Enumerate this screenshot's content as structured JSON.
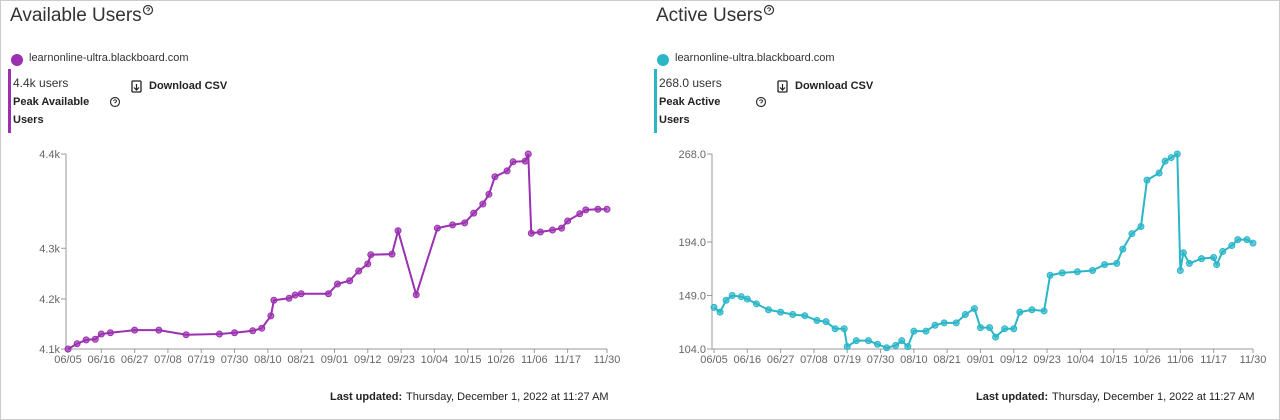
{
  "chart_data": [
    {
      "type": "line",
      "title": "Available Users",
      "peak_value": "4.4k users",
      "peak_label": "Peak Available Users",
      "download": "Download CSV",
      "updated_label": "Last updated:",
      "updated": "Thursday, December 1, 2022 at 11:27 AM",
      "x": [
        "06/05",
        "06/08",
        "06/11",
        "06/14",
        "06/16",
        "06/19",
        "06/27",
        "07/05",
        "07/14",
        "07/25",
        "07/30",
        "08/05",
        "08/08",
        "08/11",
        "08/12",
        "08/17",
        "08/19",
        "08/21",
        "08/30",
        "09/02",
        "09/06",
        "09/09",
        "09/12",
        "09/13",
        "09/20",
        "09/22",
        "09/28",
        "10/05",
        "10/10",
        "10/14",
        "10/17",
        "10/20",
        "10/22",
        "10/24",
        "10/28",
        "10/30",
        "11/03",
        "11/04",
        "11/05",
        "11/08",
        "11/12",
        "11/15",
        "11/17",
        "11/21",
        "11/23",
        "11/27",
        "11/30"
      ],
      "series": [
        {
          "name": "learnonline-ultra.blackboard.com",
          "color": "#9b30b0",
          "values": [
            4100,
            4108,
            4114,
            4115,
            4123,
            4125,
            4129,
            4129,
            4122,
            4123,
            4125,
            4128,
            4132,
            4151,
            4175,
            4178,
            4183,
            4185,
            4185,
            4200,
            4205,
            4220,
            4231,
            4245,
            4246,
            4282,
            4183.5,
            4286,
            4291,
            4294,
            4309,
            4323,
            4338,
            4365,
            4374,
            4388,
            4389,
            4400,
            4278,
            4280,
            4283,
            4286,
            4297,
            4308,
            4314,
            4315,
            4315
          ]
        }
      ],
      "xlim": [
        "06/05",
        "11/30"
      ],
      "xticks": [
        "06/05",
        "06/16",
        "06/27",
        "07/08",
        "07/19",
        "07/30",
        "08/10",
        "08/21",
        "09/01",
        "09/12",
        "09/23",
        "10/04",
        "10/15",
        "10/26",
        "11/06",
        "11/17",
        "11/30"
      ],
      "ylim": [
        4100,
        4400
      ],
      "yticks": [
        {
          "value": 4100,
          "label": "4.1k"
        },
        {
          "value": 4177,
          "label": "4.2k"
        },
        {
          "value": 4255,
          "label": "4.3k"
        },
        {
          "value": 4400,
          "label": "4.4k"
        }
      ]
    },
    {
      "type": "line",
      "title": "Active Users",
      "peak_value": "268.0 users",
      "peak_label": "Peak Active Users",
      "download": "Download CSV",
      "updated_label": "Last updated:",
      "updated": "Thursday, December 1, 2022 at 11:27 AM",
      "x": [
        "06/05",
        "06/07",
        "06/09",
        "06/11",
        "06/14",
        "06/16",
        "06/19",
        "06/23",
        "06/27",
        "07/01",
        "07/05",
        "07/09",
        "07/12",
        "07/15",
        "07/18",
        "07/19",
        "07/22",
        "07/26",
        "07/29",
        "08/01",
        "08/04",
        "08/06",
        "08/08",
        "08/10",
        "08/14",
        "08/17",
        "08/20",
        "08/24",
        "08/27",
        "08/30",
        "09/01",
        "09/04",
        "09/06",
        "09/09",
        "09/12",
        "09/14",
        "09/18",
        "09/22",
        "09/24",
        "09/28",
        "10/03",
        "10/08",
        "10/12",
        "10/16",
        "10/18",
        "10/21",
        "10/24",
        "10/26",
        "10/30",
        "11/01",
        "11/03",
        "11/05",
        "11/06",
        "11/07",
        "11/09",
        "11/13",
        "11/17",
        "11/18",
        "11/20",
        "11/23",
        "11/25",
        "11/28",
        "11/30"
      ],
      "series": [
        {
          "name": "learnonline-ultra.blackboard.com",
          "color": "#2bb6c8",
          "values": [
            139,
            135,
            145,
            149,
            148,
            146,
            142,
            137,
            135,
            133,
            132,
            128,
            127,
            121,
            121,
            106,
            111,
            111,
            108,
            105,
            107,
            111,
            106,
            119,
            119,
            124,
            126,
            126,
            133,
            138,
            122,
            122,
            114,
            121,
            121,
            135,
            137,
            136,
            166,
            168,
            169,
            170,
            175,
            176,
            188,
            201,
            207,
            246,
            252,
            262,
            265,
            268,
            170,
            185,
            176,
            180,
            181,
            175,
            186,
            191,
            196,
            196,
            193
          ]
        }
      ],
      "xlim": [
        "06/05",
        "11/30"
      ],
      "xticks": [
        "06/05",
        "06/16",
        "06/27",
        "07/08",
        "07/19",
        "07/30",
        "08/10",
        "08/21",
        "09/01",
        "09/12",
        "09/23",
        "10/04",
        "10/15",
        "10/26",
        "11/06",
        "11/17",
        "11/30"
      ],
      "ylim": [
        104,
        268
      ],
      "yticks": [
        {
          "value": 104,
          "label": "104.0"
        },
        {
          "value": 149,
          "label": "149.0"
        },
        {
          "value": 194,
          "label": "194.0"
        },
        {
          "value": 268,
          "label": "268.0"
        }
      ]
    }
  ]
}
